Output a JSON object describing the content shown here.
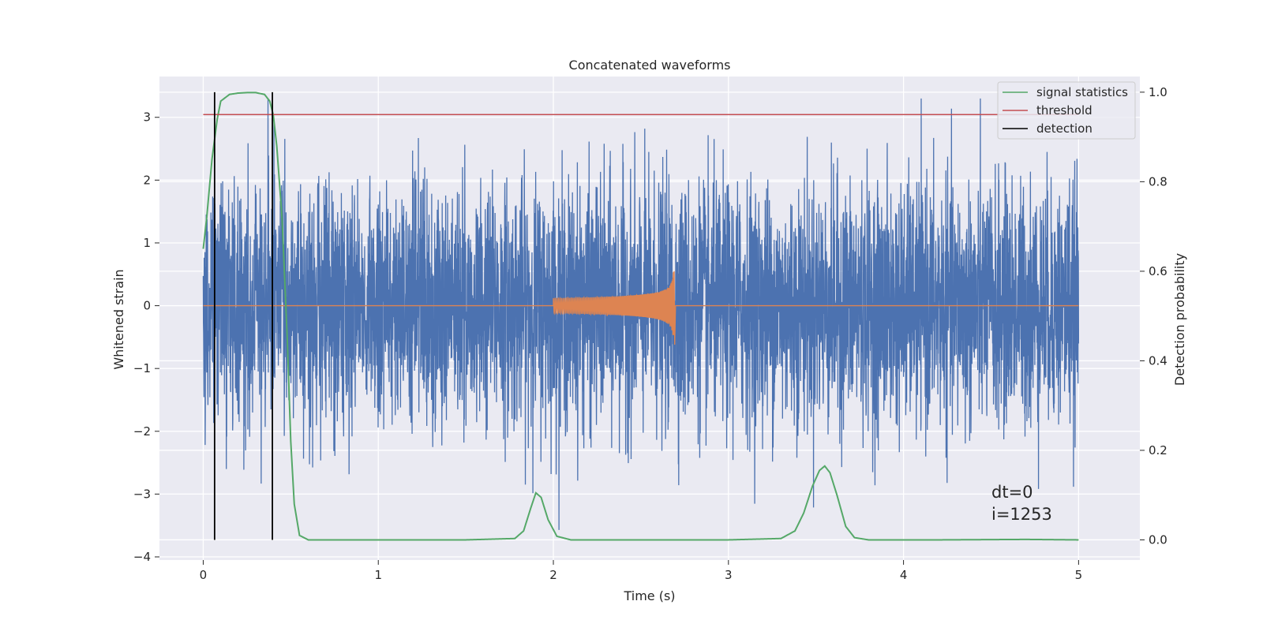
{
  "chart_data": {
    "type": "line",
    "title": "Concatenated waveforms",
    "xlabel": "Time (s)",
    "ylabel": "Whitened strain",
    "y2label": "Detection probability",
    "xlim": [
      -0.25,
      5.35
    ],
    "ylim": [
      -4.05,
      3.65
    ],
    "y2lim": [
      -0.045,
      1.035
    ],
    "xticks": [
      0,
      1,
      2,
      3,
      4,
      5
    ],
    "yticks": [
      -4,
      -3,
      -2,
      -1,
      0,
      1,
      2,
      3
    ],
    "y2ticks": [
      0.0,
      0.2,
      0.4,
      0.6,
      0.8,
      1.0
    ],
    "grid": true,
    "legend_position": "top-right",
    "legend": [
      {
        "name": "signal statistics",
        "color": "#55a868"
      },
      {
        "name": "threshold",
        "color": "#c44e52"
      },
      {
        "name": "detection",
        "color": "#000000"
      }
    ],
    "series": [
      {
        "name": "whitened strain (noise)",
        "color": "#4c72b0",
        "x_range": [
          0,
          5
        ],
        "amplitude_typical": 1.0,
        "max": 3.3,
        "min": -3.7
      },
      {
        "name": "injected waveform",
        "color": "#dd8452",
        "x_range": [
          2.0,
          2.7
        ],
        "peak_x": 2.69,
        "peak_max": 0.55,
        "peak_min": -0.62
      },
      {
        "name": "signal statistics",
        "color": "#55a868",
        "axis": "right",
        "x": [
          0,
          0.02,
          0.05,
          0.08,
          0.1,
          0.15,
          0.2,
          0.25,
          0.3,
          0.35,
          0.38,
          0.4,
          0.42,
          0.45,
          0.48,
          0.5,
          0.52,
          0.55,
          0.6,
          1.0,
          1.5,
          1.78,
          1.83,
          1.87,
          1.9,
          1.93,
          1.97,
          2.02,
          2.1,
          2.5,
          3.0,
          3.3,
          3.38,
          3.43,
          3.48,
          3.52,
          3.55,
          3.58,
          3.62,
          3.67,
          3.72,
          3.8,
          4.2,
          4.7,
          5.0
        ],
        "y": [
          0.65,
          0.72,
          0.85,
          0.94,
          0.98,
          0.995,
          0.998,
          0.999,
          0.999,
          0.995,
          0.98,
          0.95,
          0.88,
          0.72,
          0.45,
          0.22,
          0.08,
          0.01,
          0.0,
          0.0,
          0.0,
          0.003,
          0.02,
          0.07,
          0.105,
          0.095,
          0.045,
          0.008,
          0.0,
          0.0,
          0.0,
          0.003,
          0.02,
          0.06,
          0.12,
          0.155,
          0.165,
          0.15,
          0.1,
          0.03,
          0.005,
          0.0,
          0.0,
          0.001,
          0.0
        ]
      },
      {
        "name": "threshold",
        "color": "#c44e52",
        "axis": "right",
        "x": [
          0,
          5
        ],
        "y": [
          0.95,
          0.95
        ]
      },
      {
        "name": "detection",
        "color": "#000000",
        "axis": "right",
        "type": "vlines",
        "x": [
          0.065,
          0.395
        ],
        "y_range": [
          0.0,
          1.0
        ]
      }
    ],
    "annotations": [
      {
        "text": "dt=0",
        "x": 4.5,
        "y": -3.18
      },
      {
        "text": "i=1253",
        "x": 4.5,
        "y": -3.5
      }
    ]
  }
}
